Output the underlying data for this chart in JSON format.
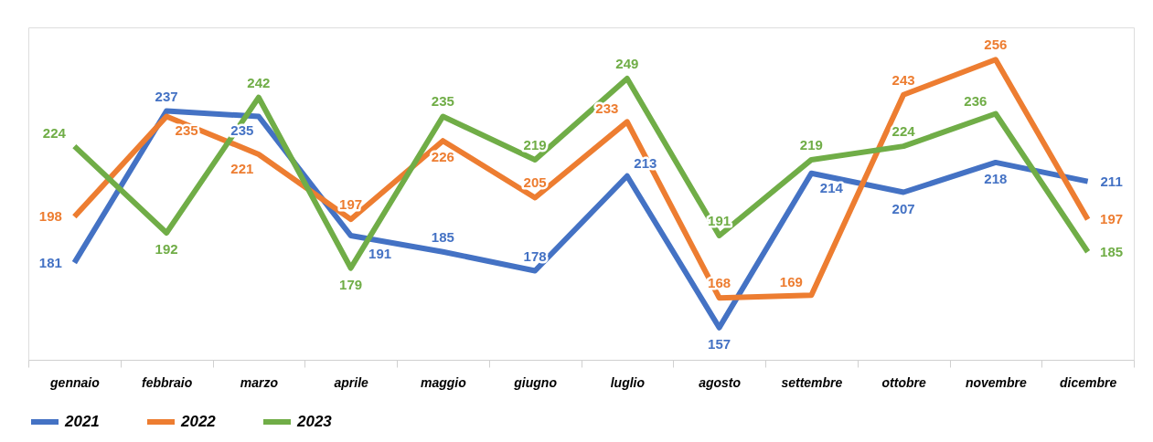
{
  "chart_data": {
    "type": "line",
    "categories": [
      "gennaio",
      "febbraio",
      "marzo",
      "aprile",
      "maggio",
      "giugno",
      "luglio",
      "agosto",
      "settembre",
      "ottobre",
      "novembre",
      "dicembre"
    ],
    "series": [
      {
        "name": "2021",
        "color": "#4472c4",
        "values": [
          181,
          237,
          235,
          191,
          185,
          178,
          213,
          157,
          214,
          207,
          218,
          211
        ]
      },
      {
        "name": "2022",
        "color": "#ed7d31",
        "values": [
          198,
          235,
          221,
          197,
          226,
          205,
          233,
          168,
          169,
          243,
          256,
          197
        ]
      },
      {
        "name": "2023",
        "color": "#70ad47",
        "values": [
          224,
          192,
          242,
          179,
          235,
          219,
          249,
          191,
          219,
          224,
          236,
          185
        ]
      }
    ],
    "data_labels": true,
    "legend": "bottom",
    "grid": false,
    "marker": "none",
    "line_style": "solid",
    "tick_labels": "x"
  }
}
